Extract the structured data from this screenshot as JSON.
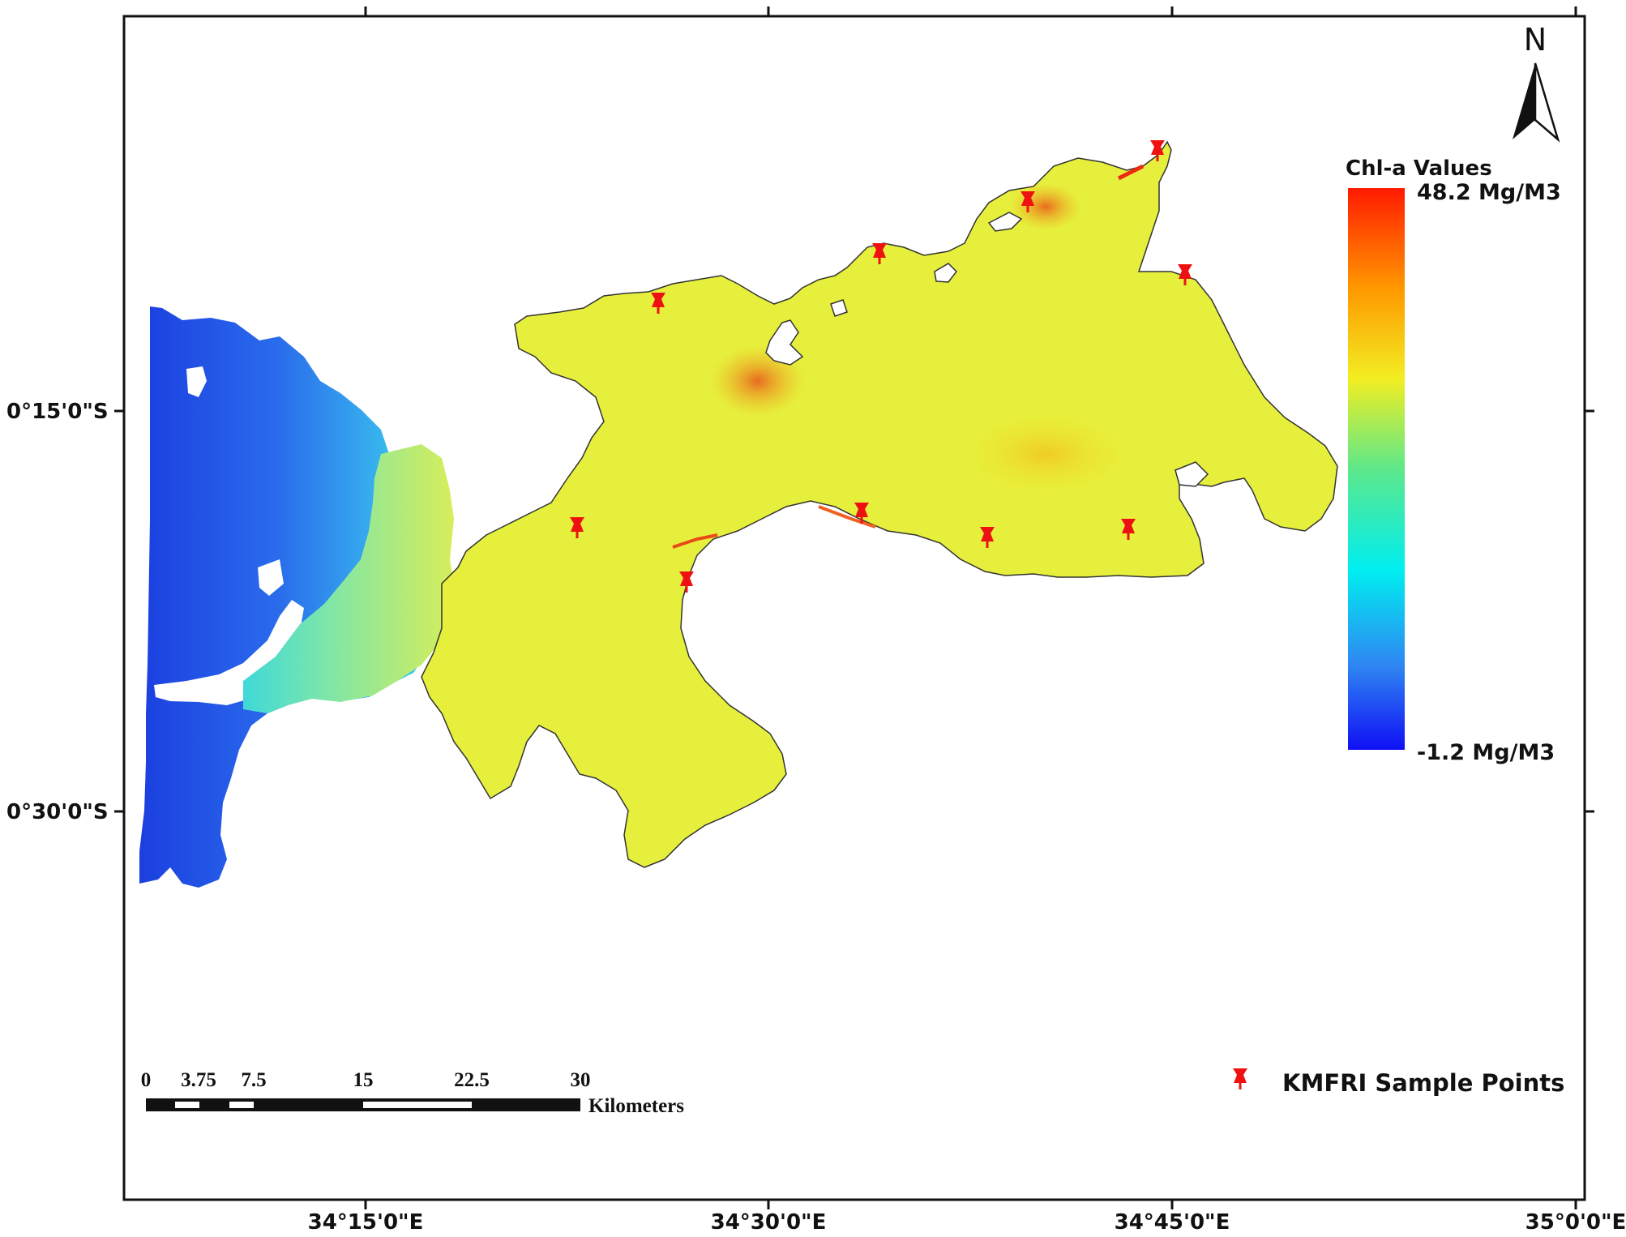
{
  "map": {
    "graticule": {
      "x_labels": [
        "34°15'0\"E",
        "34°30'0\"E",
        "34°45'0\"E",
        "35°0'0\"E"
      ],
      "y_labels": [
        "0°15'0\"S",
        "0°30'0\"S"
      ]
    },
    "north_arrow": {
      "label": "N"
    },
    "colorbar": {
      "title": "Chl-a Values",
      "max_label": "48.2 Mg/M3",
      "min_label": "-1.2 Mg/M3",
      "max_value": 48.2,
      "min_value": -1.2,
      "unit": "Mg/M3",
      "colors": [
        "#ff1a00",
        "#ff9900",
        "#f2ee22",
        "#5de88a",
        "#00eef0",
        "#2f86f2",
        "#1010f5"
      ]
    },
    "scale_bar": {
      "ticks": [
        "0",
        "3.75",
        "7.5",
        "15",
        "22.5",
        "30"
      ],
      "unit": "Kilometers"
    },
    "legend": {
      "label": "KMFRI Sample Points",
      "marker_color": "#ee1111"
    },
    "sample_points_count": 10
  }
}
